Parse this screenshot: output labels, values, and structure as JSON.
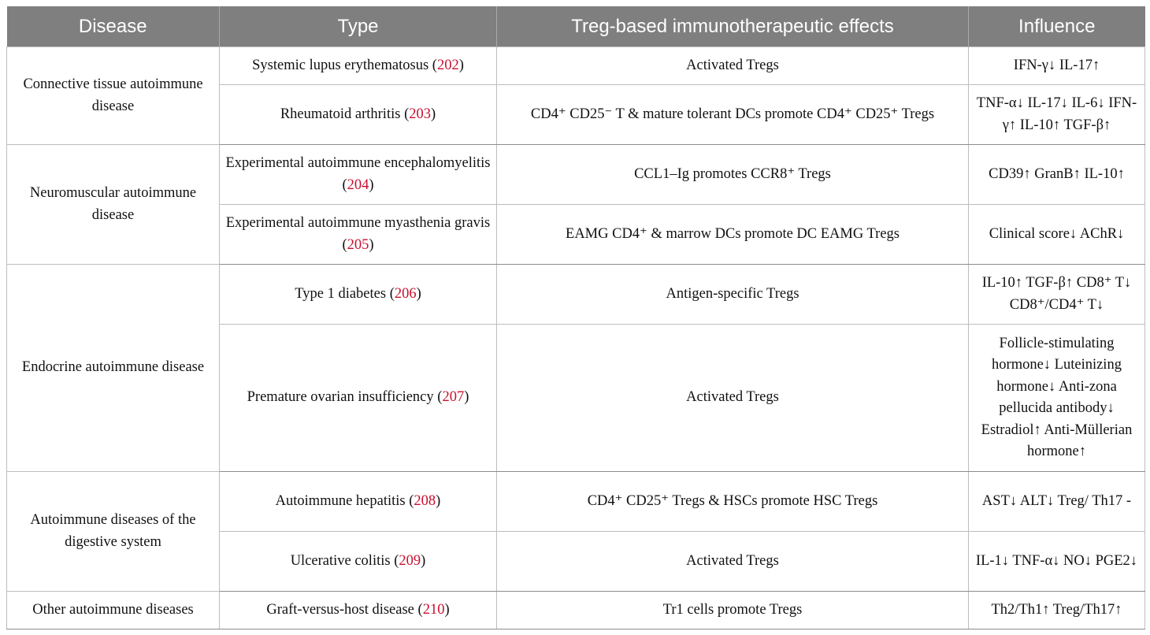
{
  "headers": [
    "Disease",
    "Type",
    "Treg-based immunotherapeutic effects",
    "Influence"
  ],
  "groups": [
    {
      "disease": "Connective tissue autoimmune disease",
      "rows": [
        {
          "type": "Systemic lupus erythematosus",
          "ref": "202",
          "effect": "Activated Tregs",
          "influence": "IFN-γ↓ IL-17↑"
        },
        {
          "type": "Rheumatoid arthritis",
          "ref": "203",
          "effect": "CD4⁺ CD25⁻ T & mature tolerant DCs promote CD4⁺ CD25⁺ Tregs",
          "influence": "TNF-α↓ IL-17↓ IL-6↓ IFN-γ↑ IL-10↑ TGF-β↑"
        }
      ]
    },
    {
      "disease": "Neuromuscular autoimmune disease",
      "rows": [
        {
          "type": "Experimental autoimmune encephalomyelitis",
          "ref": "204",
          "effect": "CCL1–Ig promotes CCR8⁺ Tregs",
          "influence": "CD39↑ GranB↑ IL-10↑"
        },
        {
          "type": "Experimental autoimmune myasthenia gravis",
          "ref": "205",
          "effect": "EAMG CD4⁺ & marrow DCs promote DC EAMG Tregs",
          "influence": "Clinical score↓ AChR↓"
        }
      ]
    },
    {
      "disease": "Endocrine autoimmune disease",
      "rows": [
        {
          "type": "Type 1 diabetes",
          "ref": "206",
          "effect": "Antigen-specific Tregs",
          "influence": "IL-10↑ TGF-β↑ CD8⁺ T↓ CD8⁺/CD4⁺ T↓"
        },
        {
          "type": "Premature ovarian insufficiency",
          "ref": "207",
          "effect": "Activated Tregs",
          "influence": "Follicle-stimulating hormone↓ Luteinizing hormone↓ Anti-zona pellucida antibody↓ Estradiol↑ Anti-Müllerian hormone↑"
        }
      ]
    },
    {
      "disease": "Autoimmune diseases of the digestive system",
      "rows": [
        {
          "type": "Autoimmune hepatitis",
          "ref": "208",
          "effect": "CD4⁺ CD25⁺ Tregs & HSCs promote HSC Tregs",
          "influence": "AST↓ ALT↓ Treg/ Th17 -"
        },
        {
          "type": "Ulcerative colitis",
          "ref": "209",
          "effect": "Activated Tregs",
          "influence": "IL-1↓ TNF-α↓ NO↓ PGE2↓"
        }
      ]
    },
    {
      "disease": "Other autoimmune diseases",
      "rows": [
        {
          "type": "Graft-versus-host disease",
          "ref": "210",
          "effect": "Tr1 cells promote Tregs",
          "influence": "Th2/Th1↑ Treg/Th17↑"
        }
      ]
    }
  ]
}
